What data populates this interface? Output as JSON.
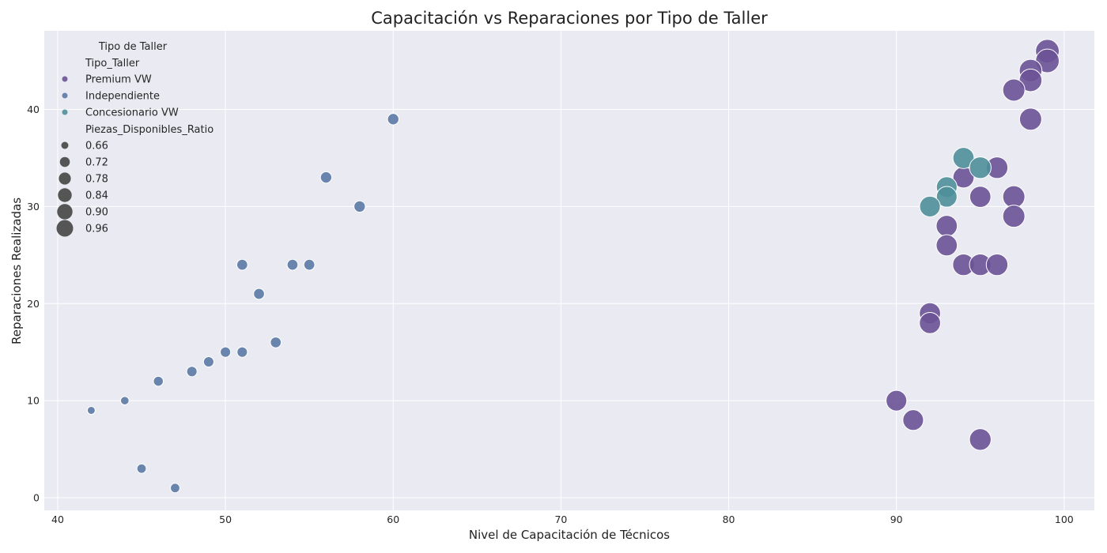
{
  "chart_data": {
    "type": "scatter",
    "title": "Capacitación vs Reparaciones por Tipo de Taller",
    "xlabel": "Nivel de Capacitación de Técnicos",
    "ylabel": "Reparaciones Realizadas",
    "xlim": [
      39.2,
      101.8
    ],
    "ylim": [
      -1.3,
      48.1
    ],
    "x_ticks": [
      40,
      50,
      60,
      70,
      80,
      90,
      100
    ],
    "y_ticks": [
      0,
      10,
      20,
      30,
      40
    ],
    "grid": true,
    "legend": {
      "title": "Tipo de Taller",
      "hue_title": "Tipo_Taller",
      "size_title": "Piezas_Disponibles_Ratio",
      "placement": "upper-left",
      "size_entries": [
        0.66,
        0.72,
        0.78,
        0.84,
        0.9,
        0.96
      ],
      "size_labels": [
        "0.66",
        "0.72",
        "0.78",
        "0.84",
        "0.90",
        "0.96"
      ]
    },
    "series": [
      {
        "name": "Premium VW",
        "color": "#6a5396",
        "points": [
          {
            "x": 99,
            "y": 46,
            "ratio": 0.97
          },
          {
            "x": 99,
            "y": 45,
            "ratio": 0.97
          },
          {
            "x": 98,
            "y": 44,
            "ratio": 0.95
          },
          {
            "x": 98,
            "y": 43,
            "ratio": 0.95
          },
          {
            "x": 97,
            "y": 42,
            "ratio": 0.94
          },
          {
            "x": 98,
            "y": 39,
            "ratio": 0.94
          },
          {
            "x": 96,
            "y": 34,
            "ratio": 0.93
          },
          {
            "x": 94,
            "y": 33,
            "ratio": 0.92
          },
          {
            "x": 95,
            "y": 31,
            "ratio": 0.92
          },
          {
            "x": 97,
            "y": 31,
            "ratio": 0.94
          },
          {
            "x": 97,
            "y": 29,
            "ratio": 0.94
          },
          {
            "x": 93,
            "y": 28,
            "ratio": 0.92
          },
          {
            "x": 93,
            "y": 26,
            "ratio": 0.92
          },
          {
            "x": 94,
            "y": 24,
            "ratio": 0.93
          },
          {
            "x": 95,
            "y": 24,
            "ratio": 0.93
          },
          {
            "x": 96,
            "y": 24,
            "ratio": 0.93
          },
          {
            "x": 92,
            "y": 19,
            "ratio": 0.92
          },
          {
            "x": 92,
            "y": 18,
            "ratio": 0.92
          },
          {
            "x": 90,
            "y": 10,
            "ratio": 0.91
          },
          {
            "x": 91,
            "y": 8,
            "ratio": 0.91
          },
          {
            "x": 95,
            "y": 6,
            "ratio": 0.93
          }
        ]
      },
      {
        "name": "Independiente",
        "color": "#5b7aa5",
        "points": [
          {
            "x": 60,
            "y": 39,
            "ratio": 0.72
          },
          {
            "x": 56,
            "y": 33,
            "ratio": 0.72
          },
          {
            "x": 58,
            "y": 30,
            "ratio": 0.72
          },
          {
            "x": 51,
            "y": 24,
            "ratio": 0.71
          },
          {
            "x": 54,
            "y": 24,
            "ratio": 0.71
          },
          {
            "x": 55,
            "y": 24,
            "ratio": 0.71
          },
          {
            "x": 52,
            "y": 21,
            "ratio": 0.71
          },
          {
            "x": 53,
            "y": 16,
            "ratio": 0.71
          },
          {
            "x": 50,
            "y": 15,
            "ratio": 0.7
          },
          {
            "x": 51,
            "y": 15,
            "ratio": 0.7
          },
          {
            "x": 49,
            "y": 14,
            "ratio": 0.7
          },
          {
            "x": 48,
            "y": 13,
            "ratio": 0.7
          },
          {
            "x": 46,
            "y": 12,
            "ratio": 0.69
          },
          {
            "x": 44,
            "y": 10,
            "ratio": 0.66
          },
          {
            "x": 42,
            "y": 9,
            "ratio": 0.65
          },
          {
            "x": 45,
            "y": 3,
            "ratio": 0.68
          },
          {
            "x": 47,
            "y": 1,
            "ratio": 0.68
          }
        ]
      },
      {
        "name": "Concesionario VW",
        "color": "#4e8f9a",
        "points": [
          {
            "x": 94,
            "y": 35,
            "ratio": 0.92
          },
          {
            "x": 95,
            "y": 34,
            "ratio": 0.93
          },
          {
            "x": 93,
            "y": 32,
            "ratio": 0.91
          },
          {
            "x": 93,
            "y": 31,
            "ratio": 0.91
          },
          {
            "x": 92,
            "y": 30,
            "ratio": 0.91
          }
        ]
      }
    ]
  }
}
